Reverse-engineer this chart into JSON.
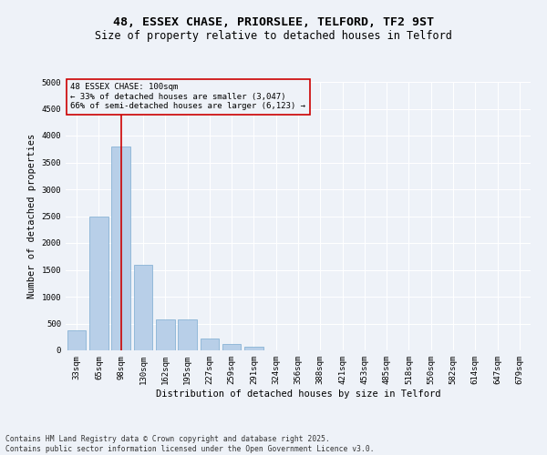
{
  "title_line1": "48, ESSEX CHASE, PRIORSLEE, TELFORD, TF2 9ST",
  "title_line2": "Size of property relative to detached houses in Telford",
  "xlabel": "Distribution of detached houses by size in Telford",
  "ylabel": "Number of detached properties",
  "categories": [
    "33sqm",
    "65sqm",
    "98sqm",
    "130sqm",
    "162sqm",
    "195sqm",
    "227sqm",
    "259sqm",
    "291sqm",
    "324sqm",
    "356sqm",
    "388sqm",
    "421sqm",
    "453sqm",
    "485sqm",
    "518sqm",
    "550sqm",
    "582sqm",
    "614sqm",
    "647sqm",
    "679sqm"
  ],
  "values": [
    370,
    2500,
    3800,
    1600,
    580,
    580,
    220,
    120,
    65,
    0,
    0,
    0,
    0,
    0,
    0,
    0,
    0,
    0,
    0,
    0,
    0
  ],
  "bar_color": "#b8cfe8",
  "bar_edge_color": "#7aaad0",
  "vline_x": 2,
  "vline_color": "#cc0000",
  "annotation_line1": "48 ESSEX CHASE: 100sqm",
  "annotation_line2": "← 33% of detached houses are smaller (3,047)",
  "annotation_line3": "66% of semi-detached houses are larger (6,123) →",
  "annotation_box_color": "#cc0000",
  "ylim": [
    0,
    5000
  ],
  "yticks": [
    0,
    500,
    1000,
    1500,
    2000,
    2500,
    3000,
    3500,
    4000,
    4500,
    5000
  ],
  "footer_line1": "Contains HM Land Registry data © Crown copyright and database right 2025.",
  "footer_line2": "Contains public sector information licensed under the Open Government Licence v3.0.",
  "bg_color": "#eef2f8",
  "plot_bg_color": "#eef2f8",
  "grid_color": "#ffffff",
  "title_fontsize": 9.5,
  "subtitle_fontsize": 8.5,
  "axis_label_fontsize": 7.5,
  "tick_fontsize": 6.5,
  "annotation_fontsize": 6.5,
  "footer_fontsize": 5.8
}
